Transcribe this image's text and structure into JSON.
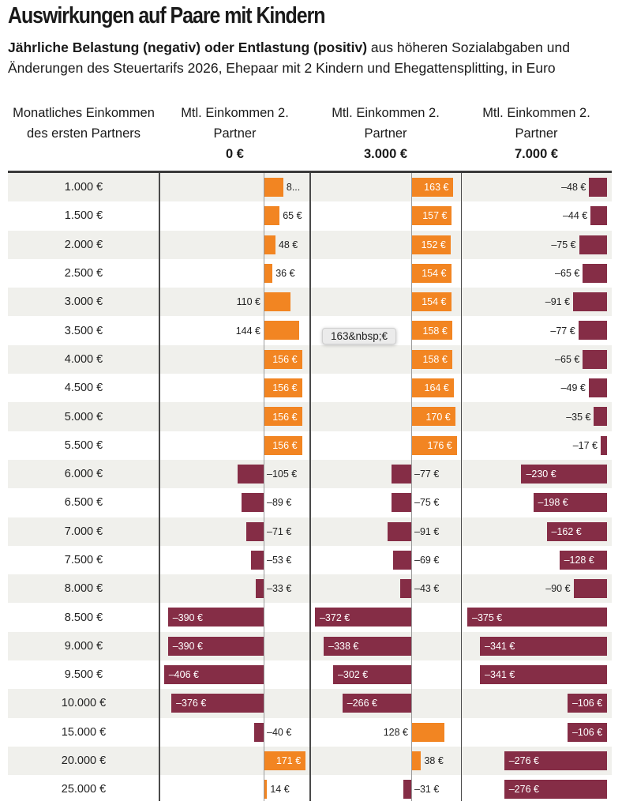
{
  "title": "Auswirkungen auf Paare mit Kindern",
  "subtitle_bold": "Jährliche Belastung (negativ) oder Entlastung (positiv)",
  "subtitle_rest": " aus höheren Sozialabgaben und Änderungen des Steuertarifs 2026, Ehepaar mit 2 Kindern und Ehegattensplitting, in Euro",
  "tooltip": "163&nbsp;€",
  "colors": {
    "positive": "#f28522",
    "negative": "#852d46",
    "band": "#f0f0ec"
  },
  "chart_data": {
    "type": "bar",
    "orientation": "horizontal",
    "title": "Auswirkungen auf Paare mit Kindern",
    "row_header": "Monatliches Einkommen des ersten Partners",
    "categories": [
      "1.000 €",
      "1.500 €",
      "2.000 €",
      "2.500 €",
      "3.000 €",
      "3.500 €",
      "4.000 €",
      "4.500 €",
      "5.000 €",
      "5.500 €",
      "6.000 €",
      "6.500 €",
      "7.000 €",
      "7.500 €",
      "8.000 €",
      "8.500 €",
      "9.000 €",
      "9.500 €",
      "10.000 €",
      "15.000 €",
      "20.000 €",
      "25.000 €"
    ],
    "series": [
      {
        "name": "Mtl. Einkommen 2. Partner",
        "name_bold": "0 €",
        "values": [
          80,
          65,
          48,
          36,
          110,
          144,
          156,
          156,
          156,
          156,
          -105,
          -89,
          -71,
          -53,
          -33,
          -390,
          -390,
          -406,
          -376,
          -40,
          171,
          14
        ],
        "labels": [
          "8...",
          "65 €",
          "48 €",
          "36 €",
          "110 €",
          "144 €",
          "156 €",
          "156 €",
          "156 €",
          "156 €",
          "–105 €",
          "–89 €",
          "–71 €",
          "–53 €",
          "–33 €",
          "–390 €",
          "–390 €",
          "–406 €",
          "–376 €",
          "–40 €",
          "171 €",
          "14 €"
        ]
      },
      {
        "name": "Mtl. Einkommen 2. Partner",
        "name_bold": "3.000 €",
        "values": [
          163,
          157,
          152,
          154,
          154,
          158,
          158,
          164,
          170,
          176,
          -77,
          -75,
          -91,
          -69,
          -43,
          -372,
          -338,
          -302,
          -266,
          128,
          38,
          -31
        ],
        "labels": [
          "163 €",
          "157 €",
          "152 €",
          "154 €",
          "154 €",
          "158 €",
          "158 €",
          "164 €",
          "170 €",
          "176 €",
          "–77 €",
          "–75 €",
          "–91 €",
          "–69 €",
          "–43 €",
          "–372 €",
          "–338 €",
          "–302 €",
          "–266 €",
          "128 €",
          "38 €",
          "–31 €"
        ]
      },
      {
        "name": "Mtl. Einkommen 2. Partner",
        "name_bold": "7.000 €",
        "values": [
          -48,
          -44,
          -75,
          -65,
          -91,
          -77,
          -65,
          -49,
          -35,
          -17,
          -230,
          -198,
          -162,
          -128,
          -90,
          -375,
          -341,
          -341,
          -106,
          -106,
          -276,
          -276
        ],
        "labels": [
          "–48 €",
          "–44 €",
          "–75 €",
          "–65 €",
          "–91 €",
          "–77 €",
          "–65 €",
          "–49 €",
          "–35 €",
          "–17 €",
          "–230 €",
          "–198 €",
          "–162 €",
          "–128 €",
          "–90 €",
          "–375 €",
          "–341 €",
          "–341 €",
          "–106 €",
          "–106 €",
          "–276 €",
          "–276 €"
        ]
      }
    ],
    "grid": false,
    "legend": "none"
  }
}
